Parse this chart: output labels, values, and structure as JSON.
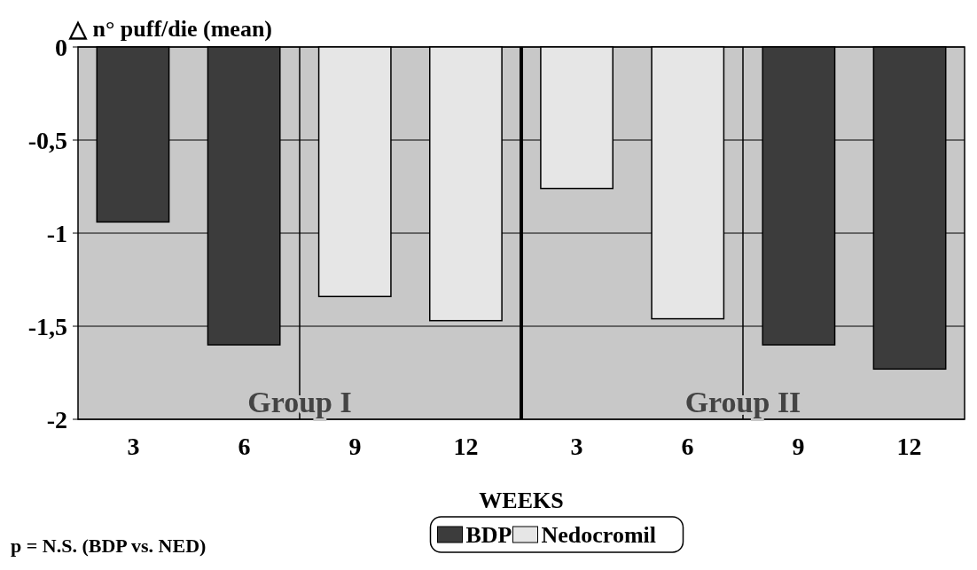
{
  "chart_data": {
    "type": "bar",
    "ylabel": "△ n° puff/die (mean)",
    "xlabel": "WEEKS",
    "categories": [
      "3",
      "6",
      "9",
      "12",
      "3",
      "6",
      "9",
      "12"
    ],
    "series": [
      {
        "name": "BDP",
        "color": "#3c3c3c",
        "values": [
          -0.94,
          -1.6,
          null,
          null,
          null,
          null,
          -1.6,
          -1.73
        ]
      },
      {
        "name": "Nedocromil",
        "color": "#e6e6e6",
        "values": [
          null,
          null,
          -1.34,
          -1.47,
          -0.76,
          -1.46,
          null,
          null
        ]
      }
    ],
    "ylim": [
      -2,
      0
    ],
    "yticks": [
      {
        "value": -2,
        "label": "-2"
      },
      {
        "value": -1.5,
        "label": "-1,5"
      },
      {
        "value": -1,
        "label": "-1"
      },
      {
        "value": -0.5,
        "label": "-0,5"
      },
      0
    ],
    "grid": "y",
    "legend": "bottom",
    "annotations": [
      "Group I",
      "Group II",
      "p = N.S. (BDP vs. NED)"
    ]
  }
}
